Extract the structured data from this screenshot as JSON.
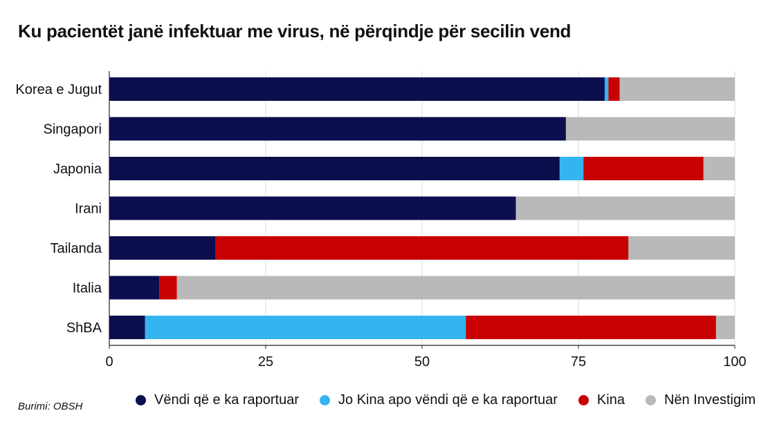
{
  "title": "Ku pacientët janë infektuar me virus, në përqindje për secilin vend",
  "source": "Burimi: OBSH",
  "colors": {
    "series_0": "#0b0f4e",
    "series_1": "#35b5f0",
    "series_2": "#c80000",
    "series_3": "#b9b9b9",
    "grid": "#d9d9d9",
    "axis": "#222222"
  },
  "chart_data": {
    "type": "bar",
    "orientation": "horizontal",
    "stacked": true,
    "title": "Ku pacientët janë infektuar me virus, në përqindje për secilin vend",
    "xlabel": "",
    "ylabel": "",
    "xlim": [
      0,
      100
    ],
    "xticks": [
      0,
      25,
      50,
      75,
      100
    ],
    "grid": true,
    "legend_position": "bottom",
    "categories": [
      "Korea e Jugut",
      "Singapori",
      "Japonia",
      "Irani",
      "Tailanda",
      "Italia",
      "ShBA"
    ],
    "series": [
      {
        "name": "Vëndi që e ka raportuar",
        "values": [
          79.2,
          73,
          72,
          65,
          17,
          8,
          5.7
        ]
      },
      {
        "name": "Jo Kina apo vëndi që e ka raportuar",
        "values": [
          0.6,
          0,
          3.8,
          0,
          0,
          0,
          51.3
        ]
      },
      {
        "name": "Kina",
        "values": [
          1.8,
          0,
          19.2,
          0,
          66,
          2.8,
          40
        ]
      },
      {
        "name": "Nën Investigim",
        "values": [
          18.4,
          27,
          5,
          35,
          17,
          89.2,
          3
        ]
      }
    ]
  }
}
